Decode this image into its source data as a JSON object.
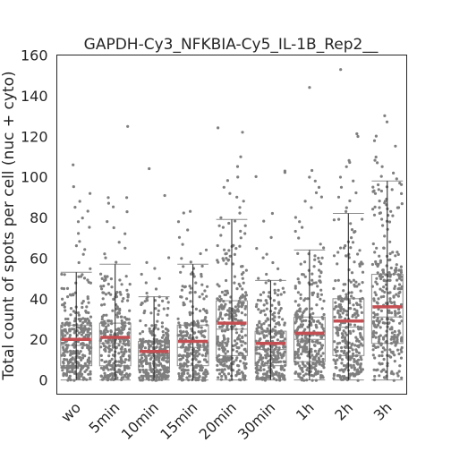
{
  "chart_data": {
    "type": "box-strip",
    "title": "GAPDH-Cy3_NFKBIA-Cy5_IL-1B_Rep2__",
    "xlabel": "",
    "ylabel": "Total count of spots per cell (nuc + cyto)",
    "ylim": [
      -7,
      160
    ],
    "yticks": [
      0,
      20,
      40,
      60,
      80,
      100,
      120,
      140,
      160
    ],
    "grid": false,
    "legend": "none",
    "categories": [
      "wo",
      "5min",
      "10min",
      "15min",
      "20min",
      "30min",
      "1h",
      "2h",
      "3h"
    ],
    "median_color": "#c44e52",
    "point_color": "#7f7f7f",
    "boxes": [
      {
        "category": "wo",
        "q1": 7,
        "median": 17,
        "q3": 27,
        "whisker_low": 0,
        "whisker_high": 53,
        "mean": 20,
        "outliers": [
          55,
          58,
          62,
          64,
          66,
          68,
          72,
          75,
          78,
          80,
          83,
          85,
          88,
          92,
          95,
          106
        ]
      },
      {
        "category": "5min",
        "q1": 7,
        "median": 18,
        "q3": 28,
        "whisker_low": 0,
        "whisker_high": 57,
        "mean": 21,
        "outliers": [
          58,
          60,
          62,
          65,
          68,
          72,
          75,
          78,
          83,
          85,
          87,
          90,
          90,
          125
        ]
      },
      {
        "category": "10min",
        "q1": 5,
        "median": 12,
        "q3": 19,
        "whisker_low": 0,
        "whisker_high": 41,
        "mean": 14,
        "outliers": [
          43,
          45,
          48,
          50,
          52,
          55,
          58,
          60,
          91,
          104
        ]
      },
      {
        "category": "15min",
        "q1": 7,
        "median": 16,
        "q3": 27,
        "whisker_low": 0,
        "whisker_high": 57,
        "mean": 19,
        "outliers": [
          58,
          60,
          62,
          64,
          67,
          70,
          74,
          78,
          82,
          83
        ]
      },
      {
        "category": "20min",
        "q1": 12,
        "median": 25,
        "q3": 39,
        "whisker_low": 0,
        "whisker_high": 79,
        "mean": 28,
        "outliers": [
          80,
          82,
          85,
          88,
          90,
          92,
          95,
          98,
          100,
          105,
          110,
          122,
          124
        ]
      },
      {
        "category": "30min",
        "q1": 7,
        "median": 15,
        "q3": 24,
        "whisker_low": 0,
        "whisker_high": 49,
        "mean": 18,
        "outliers": [
          50,
          52,
          55,
          58,
          60,
          62,
          65,
          70,
          78,
          82,
          100,
          102,
          103
        ]
      },
      {
        "category": "1h",
        "q1": 9,
        "median": 20,
        "q3": 31,
        "whisker_low": 0,
        "whisker_high": 64,
        "mean": 23,
        "outliers": [
          65,
          67,
          70,
          73,
          75,
          78,
          80,
          85,
          88,
          90,
          92,
          95,
          98,
          100,
          103,
          144
        ]
      },
      {
        "category": "2h",
        "q1": 12,
        "median": 26,
        "q3": 40,
        "whisker_low": 0,
        "whisker_high": 82,
        "mean": 29,
        "outliers": [
          83,
          85,
          88,
          90,
          92,
          95,
          98,
          100,
          105,
          107,
          108,
          120,
          121,
          153
        ]
      },
      {
        "category": "3h",
        "q1": 18,
        "median": 31,
        "q3": 52,
        "whisker_low": 0,
        "whisker_high": 98,
        "mean": 36,
        "outliers": [
          99,
          100,
          102,
          105,
          107,
          108,
          110,
          115,
          118,
          120,
          127,
          130
        ]
      }
    ]
  }
}
